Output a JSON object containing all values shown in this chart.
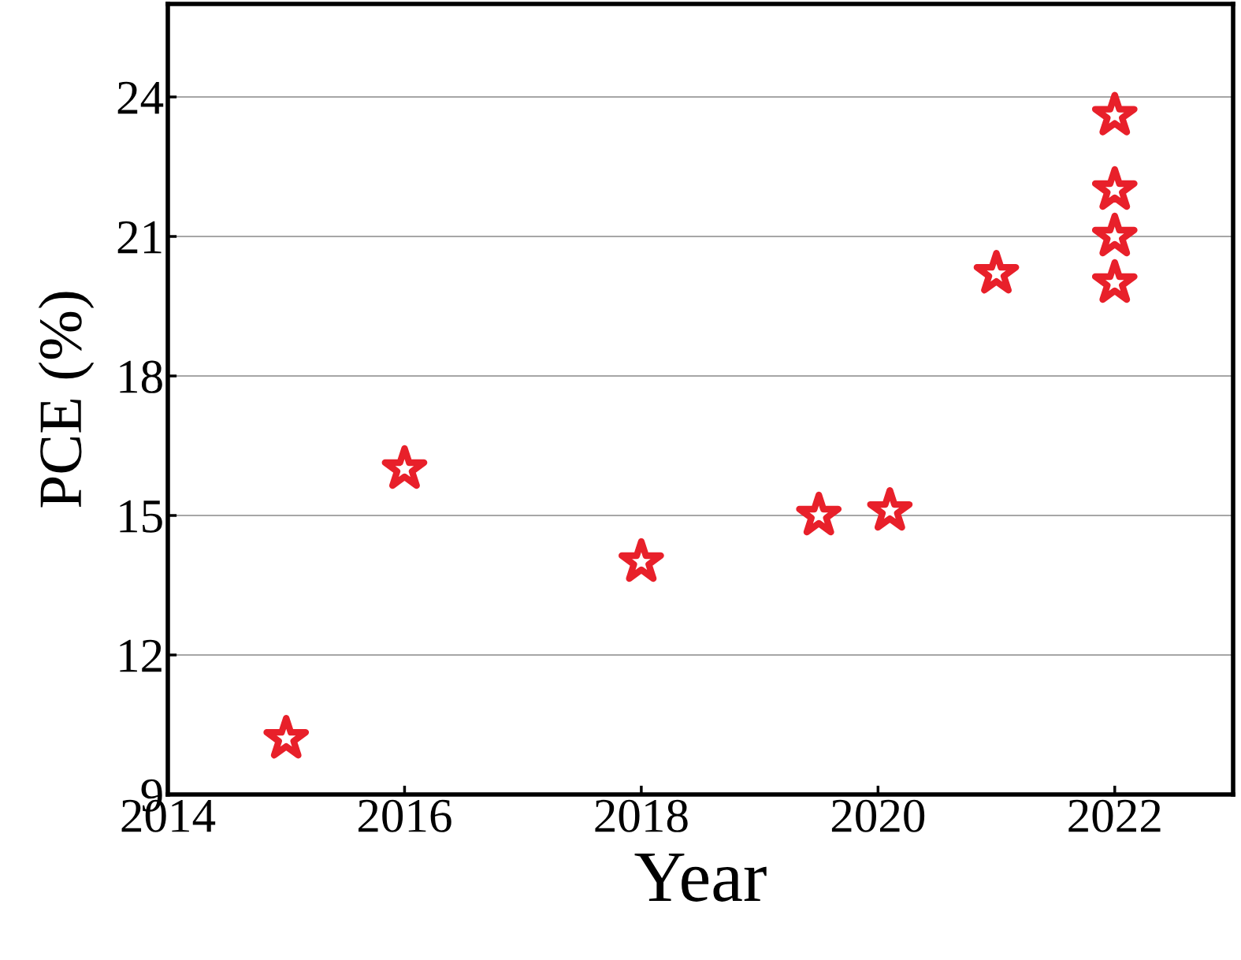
{
  "chart_data": {
    "type": "scatter",
    "xlabel": "Year",
    "ylabel": "PCE (%)",
    "x": [
      2015,
      2016,
      2018,
      2019.5,
      2020.1,
      2021,
      2022,
      2022,
      2022,
      2022
    ],
    "series": [
      {
        "color": "#e8202a",
        "values": [
          10.2,
          16.0,
          14.0,
          15.0,
          15.1,
          20.2,
          23.6,
          22.0,
          21.0,
          20.0
        ]
      }
    ],
    "xlim": [
      2014,
      2023
    ],
    "xticks": [
      2014,
      2016,
      2018,
      2020,
      2022
    ],
    "ylim": [
      9,
      26
    ],
    "yticks": [
      9,
      12,
      15,
      18,
      21,
      24
    ],
    "grid": "y",
    "marker": "star"
  }
}
